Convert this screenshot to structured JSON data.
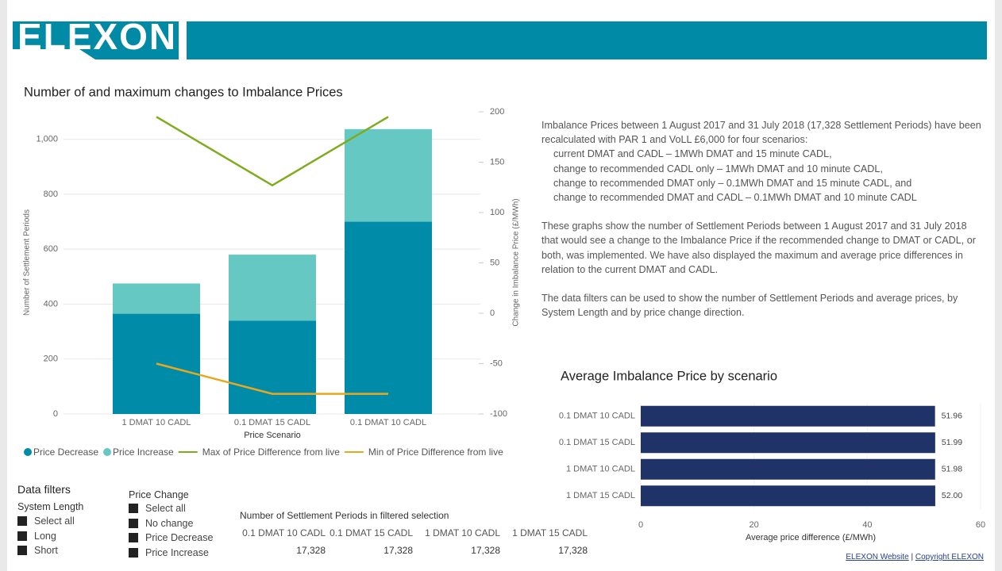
{
  "header": {
    "logo": "ELEXON"
  },
  "chart_data": [
    {
      "type": "combo",
      "title": "Number of and maximum changes to Imbalance Prices",
      "categories": [
        "1 DMAT 10 CADL",
        "0.1 DMAT 15 CADL",
        "0.1 DMAT 10 CADL"
      ],
      "series": [
        {
          "name": "Price Decrease",
          "type": "bar",
          "color": "#008ca8",
          "values": [
            365,
            340,
            700
          ]
        },
        {
          "name": "Price Increase",
          "type": "bar",
          "color": "#66c8c2",
          "values": [
            110,
            240,
            337
          ]
        },
        {
          "name": "Max of Price Difference from live",
          "type": "line",
          "axis": "y2",
          "color": "#7fac1c",
          "values": [
            195,
            127,
            195
          ]
        },
        {
          "name": "Min of Price Difference from live",
          "type": "line",
          "axis": "y2",
          "color": "#e8a820",
          "values": [
            -50,
            -80,
            -80
          ]
        }
      ],
      "stacked": true,
      "x_label": "Price Scenario",
      "y_label": "Number of Settlement Periods",
      "y2_label": "Change in Imbalance Price (£/MWh)",
      "ylim": [
        0,
        1100
      ],
      "yticks": [
        0,
        200,
        400,
        600,
        800,
        {
          "value": 1000,
          "label": "1,000"
        }
      ],
      "y2lim": [
        -100,
        200
      ],
      "y2ticks": [
        -100,
        -50,
        0,
        50,
        100,
        150,
        200
      ],
      "grid": true,
      "legend": "bottom"
    },
    {
      "type": "bar",
      "orientation": "horizontal",
      "title": "Average Imbalance Price by scenario",
      "categories": [
        "0.1 DMAT 10 CADL",
        "0.1 DMAT 15 CADL",
        "1 DMAT 10 CADL",
        "1 DMAT 15 CADL"
      ],
      "values": [
        51.96,
        51.99,
        51.98,
        52.0
      ],
      "value_labels": [
        "51.96",
        "51.99",
        "51.98",
        "52.00"
      ],
      "color": "#1f3368",
      "x_label": "Average price difference (£/MWh)",
      "xlim": [
        0,
        60
      ],
      "xticks": [
        0,
        20,
        40,
        60
      ],
      "grid": true
    }
  ],
  "description": {
    "intro": "Imbalance Prices between 1 August 2017 and 31 July 2018 (17,328 Settlement Periods) have been recalculated with PAR 1 and VoLL £6,000 for four scenarios:",
    "scenarios": [
      "current DMAT and CADL – 1MWh DMAT and 15 minute CADL,",
      "change to recommended CADL only – 1MWh DMAT and 10 minute CADL,",
      "change to recommended DMAT only – 0.1MWh DMAT and 15 minute CADL, and",
      "change to recommended DMAT and CADL – 0.1MWh DMAT and 10 minute CADL"
    ],
    "paragraphs": [
      "These graphs show the number of Settlement Periods between 1 August 2017 and 31 July 2018 that would see a change to the Imbalance Price if the recommended change to DMAT or CADL, or both, was implemented. We have also displayed the maximum and average price differences in relation to the current DMAT and CADL.",
      "The data filters can be used to show the number of Settlement Periods and average prices, by System Length and by price change direction."
    ]
  },
  "filters": {
    "title": "Data filters",
    "system_length": {
      "title": "System Length",
      "options": [
        "Select all",
        "Long",
        "Short"
      ]
    },
    "price_change": {
      "title": "Price Change",
      "options": [
        "Select all",
        "No change",
        "Price Decrease",
        "Price Increase"
      ]
    }
  },
  "table": {
    "title": "Number of Settlement Periods in filtered selection",
    "columns": [
      "0.1 DMAT 10 CADL",
      "0.1 DMAT 15 CADL",
      "1 DMAT 10 CADL",
      "1 DMAT 15 CADL"
    ],
    "rows": [
      [
        "17,328",
        "17,328",
        "17,328",
        "17,328"
      ]
    ]
  },
  "footer": {
    "links": [
      "ELEXON Website",
      "Copyright ELEXON"
    ],
    "separator": "|"
  }
}
